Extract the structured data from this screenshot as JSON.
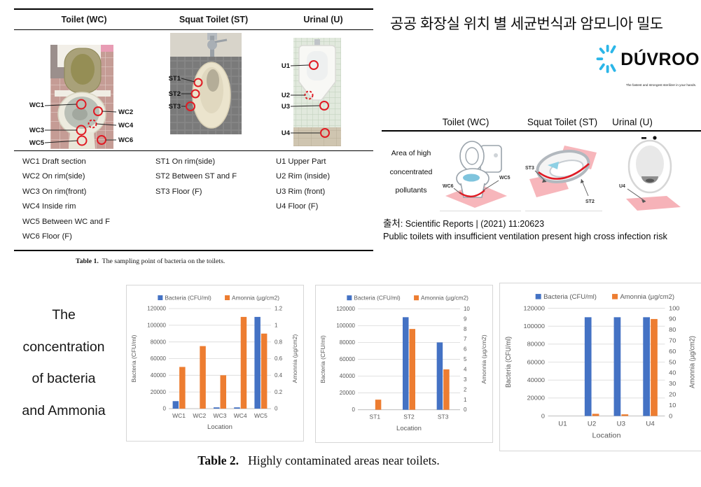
{
  "table1": {
    "headers": [
      "Toilet (WC)",
      "Squat Toilet (ST)",
      "Urinal (U)"
    ],
    "wc_labels": [
      "WC1",
      "WC2",
      "WC3",
      "WC4",
      "WC5",
      "WC6"
    ],
    "st_labels": [
      "ST1",
      "ST2",
      "ST3"
    ],
    "u_labels": [
      "U1",
      "U2",
      "U3",
      "U4"
    ],
    "rows_wc": [
      "WC1 Draft section",
      "WC2 On rim(side)",
      "WC3 On rim(front)",
      "WC4 Inside rim",
      "WC5 Between WC and F",
      "WC6 Floor (F)"
    ],
    "rows_st": [
      "ST1 On rim(side)",
      "ST2 Between ST and F",
      "ST3 Floor (F)"
    ],
    "rows_u": [
      "U1 Upper Part",
      "U2 Rim (inside)",
      "U3 Rim (front)",
      "U4 Floor (F)"
    ],
    "caption_label": "Table 1.",
    "caption_text": "The sampling point of bacteria on the toilets."
  },
  "right_panel": {
    "title": "공공 화장실 위치 별 세균번식과 암모니아 밀도",
    "logo": {
      "brand": "DÚVROO",
      "tagline": "The fastest and strongest sterilizer in your hands.",
      "icon": "starburst-icon",
      "accent_color": "#2BB6E8"
    },
    "headers": [
      "Toilet (WC)",
      "Squat Toilet (ST)",
      "Urinal (U)"
    ],
    "area_label_lines": [
      "Area of high",
      "concentrated",
      "pollutants"
    ],
    "wc_diagram_labels": [
      "WC6",
      "WC5"
    ],
    "st_diagram_labels": [
      "ST3",
      "ST2"
    ],
    "u_diagram_labels": [
      "U4"
    ],
    "highlight_color": "#F6AEB4",
    "outline_color": "#E01B24",
    "source_prefix": "출처",
    "source_rest": ": Scientific Reports | (2021) 11:20623",
    "source_line2": "Public toilets with insufficient ventilation present high cross infection risk"
  },
  "bottom": {
    "heading_lines": [
      "The",
      "concentration",
      "of bacteria",
      "and Ammonia"
    ],
    "caption_label": "Table 2.",
    "caption_text": "Highly contaminated areas near toilets."
  },
  "chart_data": [
    {
      "type": "bar",
      "categories": [
        "WC1",
        "WC2",
        "WC3",
        "WC4",
        "WC5"
      ],
      "series": [
        {
          "name": "Bacteria (CFU/ml)",
          "axis": "left",
          "color": "#4472C4",
          "values": [
            9000,
            0,
            1500,
            1500,
            110000
          ]
        },
        {
          "name": "Amonnia (µg/cm2)",
          "axis": "right",
          "color": "#ED7D31",
          "values": [
            0.5,
            0.75,
            0.4,
            1.1,
            0.9
          ]
        }
      ],
      "xlabel": "Location",
      "left_axis": {
        "label": "Bacteria (CFU/ml)",
        "min": 0,
        "max": 120000,
        "step": 20000
      },
      "right_axis": {
        "label": "Amonnia (µg/cm2)",
        "min": 0,
        "max": 1.2,
        "step": 0.2
      },
      "legend_position": "top",
      "grid": true
    },
    {
      "type": "bar",
      "categories": [
        "ST1",
        "ST2",
        "ST3"
      ],
      "series": [
        {
          "name": "Bacteria (CFU/ml)",
          "axis": "left",
          "color": "#4472C4",
          "values": [
            0,
            110000,
            80000
          ]
        },
        {
          "name": "Amonnia (µg/cm2)",
          "axis": "right",
          "color": "#ED7D31",
          "values": [
            1,
            8,
            4
          ]
        }
      ],
      "xlabel": "Location",
      "left_axis": {
        "label": "Bacteria (CFU/ml)",
        "min": 0,
        "max": 120000,
        "step": 20000
      },
      "right_axis": {
        "label": "Amonnia (µg/cm2)",
        "min": 0,
        "max": 10,
        "step": 1
      },
      "legend_position": "top",
      "grid": true
    },
    {
      "type": "bar",
      "categories": [
        "U1",
        "U2",
        "U3",
        "U4"
      ],
      "series": [
        {
          "name": "Bacteria (CFU/ml)",
          "axis": "left",
          "color": "#4472C4",
          "values": [
            0,
            110000,
            110000,
            110000
          ]
        },
        {
          "name": "Amonnia (µg/cm2)",
          "axis": "right",
          "color": "#ED7D31",
          "values": [
            0,
            2,
            1.5,
            90
          ]
        }
      ],
      "xlabel": "Location",
      "left_axis": {
        "label": "Bacteria (CFU/ml)",
        "min": 0,
        "max": 120000,
        "step": 20000
      },
      "right_axis": {
        "label": "Amonnia (µg/cm2)",
        "min": 0,
        "max": 100,
        "step": 10
      },
      "legend_position": "top",
      "grid": true
    }
  ]
}
